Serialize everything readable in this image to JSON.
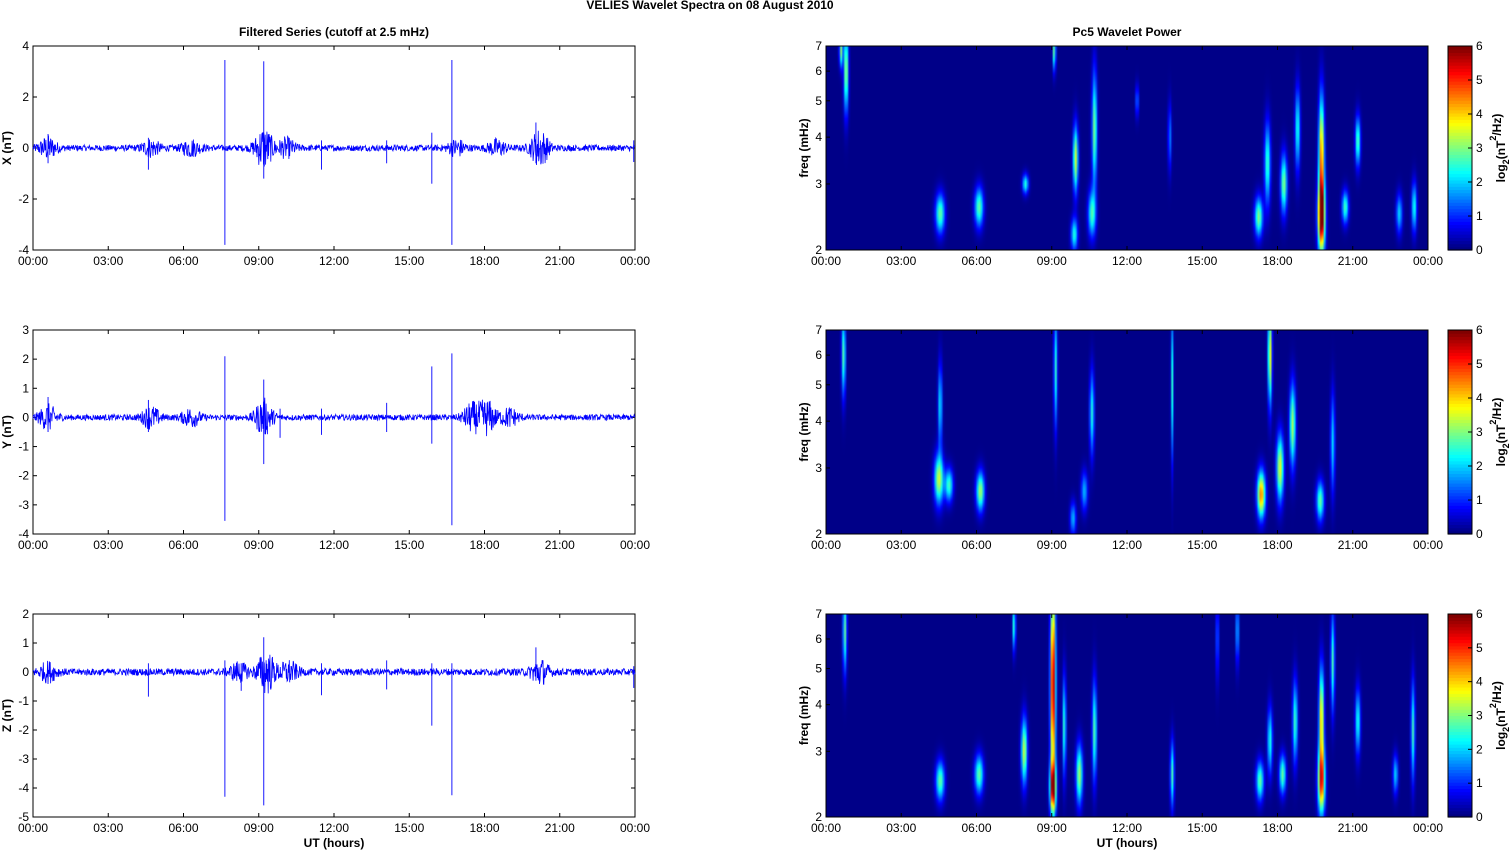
{
  "figure": {
    "title": "VELIES Wavelet Spectra on 08 August    2010",
    "left_title": "Filtered Series (cutoff at 2.5 mHz)",
    "right_title": "Pc5 Wavelet Power",
    "xlabel": "UT (hours)"
  },
  "colorbar": {
    "label_prefix": "log",
    "label_sub": "2",
    "label_mid": "(nT",
    "label_sup": "2",
    "label_suffix": "/Hz)",
    "ticks": [
      "0",
      "1",
      "2",
      "3",
      "4",
      "5",
      "6"
    ],
    "colormap": "jet",
    "range": [
      0,
      6
    ]
  },
  "colors": {
    "series": "#0000ff",
    "spectrum_background": "#00008f"
  },
  "chart_data": [
    {
      "type": "line",
      "title": "Filtered Series (cutoff at 2.5 mHz)",
      "ylabel": "X (nT)",
      "xlabel": "",
      "x_ticks": [
        "00:00",
        "03:00",
        "06:00",
        "09:00",
        "12:00",
        "15:00",
        "18:00",
        "21:00",
        "00:00"
      ],
      "xlim_hours": [
        0,
        24
      ],
      "ylim": [
        -4,
        4
      ],
      "y_ticks": [
        "-4",
        "-2",
        "0",
        "2",
        "4"
      ],
      "noise_amplitude": 0.12,
      "spikes": [
        {
          "t": 7.65,
          "values": [
            3.45,
            -3.8
          ]
        },
        {
          "t": 9.2,
          "values": [
            3.4,
            -1.2
          ]
        },
        {
          "t": 16.7,
          "values": [
            3.45,
            -3.8
          ]
        },
        {
          "t": 15.9,
          "values": [
            0.6,
            -1.4
          ]
        },
        {
          "t": 20.05,
          "values": [
            1.0,
            -0.6
          ]
        },
        {
          "t": 4.6,
          "values": [
            0.4,
            -0.85
          ]
        },
        {
          "t": 11.5,
          "values": [
            0.3,
            -0.85
          ]
        },
        {
          "t": 14.1,
          "values": [
            0.3,
            -0.6
          ]
        },
        {
          "t": 0.6,
          "values": [
            0.55,
            -0.6
          ]
        },
        {
          "t": 23.95,
          "values": [
            0.3,
            -0.55
          ]
        }
      ],
      "bursts": [
        [
          0.6,
          0.4
        ],
        [
          4.7,
          0.3
        ],
        [
          6.3,
          0.3
        ],
        [
          9.2,
          0.8
        ],
        [
          10.1,
          0.35
        ],
        [
          16.9,
          0.3
        ],
        [
          20.2,
          0.7
        ],
        [
          18.5,
          0.3
        ]
      ]
    },
    {
      "type": "line",
      "title": "",
      "ylabel": "Y (nT)",
      "xlabel": "",
      "x_ticks": [
        "00:00",
        "03:00",
        "06:00",
        "09:00",
        "12:00",
        "15:00",
        "18:00",
        "21:00",
        "00:00"
      ],
      "xlim_hours": [
        0,
        24
      ],
      "ylim": [
        -4,
        3
      ],
      "y_ticks": [
        "-4",
        "-3",
        "-2",
        "-1",
        "0",
        "1",
        "2",
        "3"
      ],
      "noise_amplitude": 0.1,
      "spikes": [
        {
          "t": 7.65,
          "values": [
            2.1,
            -3.55
          ]
        },
        {
          "t": 9.2,
          "values": [
            1.3,
            -1.6
          ]
        },
        {
          "t": 16.7,
          "values": [
            2.2,
            -3.7
          ]
        },
        {
          "t": 15.9,
          "values": [
            1.75,
            -0.9
          ]
        },
        {
          "t": 0.6,
          "values": [
            0.7,
            -0.5
          ]
        },
        {
          "t": 4.6,
          "values": [
            0.6,
            -0.5
          ]
        },
        {
          "t": 11.5,
          "values": [
            0.3,
            -0.6
          ]
        },
        {
          "t": 14.1,
          "values": [
            0.5,
            -0.5
          ]
        },
        {
          "t": 9.85,
          "values": [
            0.3,
            -0.7
          ]
        }
      ],
      "bursts": [
        [
          0.6,
          0.4
        ],
        [
          4.7,
          0.35
        ],
        [
          6.3,
          0.3
        ],
        [
          9.2,
          0.6
        ],
        [
          17.5,
          0.45
        ],
        [
          18.1,
          0.55
        ],
        [
          19.0,
          0.3
        ]
      ]
    },
    {
      "type": "line",
      "title": "",
      "ylabel": "Z (nT)",
      "xlabel": "UT (hours)",
      "x_ticks": [
        "00:00",
        "03:00",
        "06:00",
        "09:00",
        "12:00",
        "15:00",
        "18:00",
        "21:00",
        "00:00"
      ],
      "xlim_hours": [
        0,
        24
      ],
      "ylim": [
        -5,
        2
      ],
      "y_ticks": [
        "-5",
        "-4",
        "-3",
        "-2",
        "-1",
        "0",
        "1",
        "2"
      ],
      "noise_amplitude": 0.12,
      "spikes": [
        {
          "t": 7.65,
          "values": [
            0.4,
            -4.3
          ]
        },
        {
          "t": 9.2,
          "values": [
            1.2,
            -4.6
          ]
        },
        {
          "t": 16.7,
          "values": [
            0.3,
            -4.25
          ]
        },
        {
          "t": 15.9,
          "values": [
            0.3,
            -1.85
          ]
        },
        {
          "t": 4.6,
          "values": [
            0.3,
            -0.85
          ]
        },
        {
          "t": 11.5,
          "values": [
            0.3,
            -0.8
          ]
        },
        {
          "t": 14.1,
          "values": [
            0.4,
            -0.6
          ]
        },
        {
          "t": 20.05,
          "values": [
            0.85,
            -0.3
          ]
        },
        {
          "t": 8.3,
          "values": [
            0.3,
            -0.65
          ]
        },
        {
          "t": 23.95,
          "values": [
            0.2,
            -0.55
          ]
        }
      ],
      "bursts": [
        [
          0.6,
          0.3
        ],
        [
          8.2,
          0.3
        ],
        [
          9.3,
          0.7
        ],
        [
          10.2,
          0.35
        ],
        [
          20.2,
          0.4
        ]
      ]
    },
    {
      "type": "heatmap",
      "title": "Pc5 Wavelet Power",
      "ylabel": "freq (mHz)",
      "xlabel": "",
      "x_ticks": [
        "00:00",
        "03:00",
        "06:00",
        "09:00",
        "12:00",
        "15:00",
        "18:00",
        "21:00",
        "00:00"
      ],
      "xlim_hours": [
        0,
        24
      ],
      "y_scale": "log",
      "ylim_mhz": [
        2,
        7
      ],
      "y_ticks": [
        "2",
        "3",
        "4",
        "5",
        "6",
        "7"
      ],
      "blobs": [
        {
          "t": 0.8,
          "fc": 6.0,
          "fw": 0.25,
          "tw": 0.09,
          "p": 3.3
        },
        {
          "t": 0.6,
          "fc": 6.8,
          "fw": 0.1,
          "tw": 0.07,
          "p": 3.0
        },
        {
          "t": 4.55,
          "fc": 2.5,
          "fw": 0.12,
          "tw": 0.18,
          "p": 2.8
        },
        {
          "t": 6.1,
          "fc": 2.6,
          "fw": 0.12,
          "tw": 0.17,
          "p": 2.8
        },
        {
          "t": 7.95,
          "fc": 3.0,
          "fw": 0.06,
          "tw": 0.12,
          "p": 2.4
        },
        {
          "t": 9.1,
          "fc": 6.8,
          "fw": 0.12,
          "tw": 0.06,
          "p": 3.0
        },
        {
          "t": 9.9,
          "fc": 2.2,
          "fw": 0.1,
          "tw": 0.13,
          "p": 2.4
        },
        {
          "t": 9.95,
          "fc": 3.5,
          "fw": 0.2,
          "tw": 0.1,
          "p": 3.5
        },
        {
          "t": 10.7,
          "fc": 4.2,
          "fw": 0.35,
          "tw": 0.1,
          "p": 3.0
        },
        {
          "t": 10.6,
          "fc": 2.5,
          "fw": 0.14,
          "tw": 0.15,
          "p": 2.6
        },
        {
          "t": 12.4,
          "fc": 5.0,
          "fw": 0.1,
          "tw": 0.06,
          "p": 1.6
        },
        {
          "t": 13.7,
          "fc": 4.0,
          "fw": 0.2,
          "tw": 0.07,
          "p": 1.5
        },
        {
          "t": 17.25,
          "fc": 2.45,
          "fw": 0.12,
          "tw": 0.16,
          "p": 3.0
        },
        {
          "t": 17.6,
          "fc": 3.4,
          "fw": 0.25,
          "tw": 0.12,
          "p": 2.6
        },
        {
          "t": 18.25,
          "fc": 3.0,
          "fw": 0.18,
          "tw": 0.13,
          "p": 3.0
        },
        {
          "t": 18.8,
          "fc": 4.2,
          "fw": 0.25,
          "tw": 0.1,
          "p": 2.4
        },
        {
          "t": 19.75,
          "fc": 2.45,
          "fw": 0.22,
          "tw": 0.14,
          "p": 6.0
        },
        {
          "t": 19.75,
          "fc": 3.6,
          "fw": 0.35,
          "tw": 0.11,
          "p": 4.4
        },
        {
          "t": 20.7,
          "fc": 2.6,
          "fw": 0.1,
          "tw": 0.13,
          "p": 2.6
        },
        {
          "t": 21.2,
          "fc": 3.9,
          "fw": 0.15,
          "tw": 0.1,
          "p": 2.8
        },
        {
          "t": 22.85,
          "fc": 2.5,
          "fw": 0.12,
          "tw": 0.12,
          "p": 2.0
        },
        {
          "t": 23.45,
          "fc": 2.6,
          "fw": 0.15,
          "tw": 0.1,
          "p": 2.4
        }
      ]
    },
    {
      "type": "heatmap",
      "title": "",
      "ylabel": "freq (mHz)",
      "xlabel": "",
      "x_ticks": [
        "00:00",
        "03:00",
        "06:00",
        "09:00",
        "12:00",
        "15:00",
        "18:00",
        "21:00",
        "00:00"
      ],
      "xlim_hours": [
        0,
        24
      ],
      "y_scale": "log",
      "ylim_mhz": [
        2,
        7
      ],
      "y_ticks": [
        "2",
        "3",
        "4",
        "5",
        "6",
        "7"
      ],
      "blobs": [
        {
          "t": 0.7,
          "fc": 6.0,
          "fw": 0.25,
          "tw": 0.08,
          "p": 2.8
        },
        {
          "t": 4.5,
          "fc": 2.8,
          "fw": 0.15,
          "tw": 0.18,
          "p": 3.4
        },
        {
          "t": 4.55,
          "fc": 4.4,
          "fw": 0.25,
          "tw": 0.08,
          "p": 2.2
        },
        {
          "t": 4.9,
          "fc": 2.7,
          "fw": 0.1,
          "tw": 0.16,
          "p": 2.6
        },
        {
          "t": 6.15,
          "fc": 2.6,
          "fw": 0.12,
          "tw": 0.16,
          "p": 3.2
        },
        {
          "t": 9.15,
          "fc": 5.5,
          "fw": 0.35,
          "tw": 0.07,
          "p": 2.5
        },
        {
          "t": 9.85,
          "fc": 2.2,
          "fw": 0.1,
          "tw": 0.12,
          "p": 1.8
        },
        {
          "t": 10.6,
          "fc": 4.2,
          "fw": 0.25,
          "tw": 0.09,
          "p": 2.4
        },
        {
          "t": 10.3,
          "fc": 2.6,
          "fw": 0.12,
          "tw": 0.13,
          "p": 1.8
        },
        {
          "t": 13.8,
          "fc": 5.0,
          "fw": 0.45,
          "tw": 0.05,
          "p": 2.4
        },
        {
          "t": 17.35,
          "fc": 2.55,
          "fw": 0.14,
          "tw": 0.16,
          "p": 4.5
        },
        {
          "t": 17.7,
          "fc": 6.0,
          "fw": 0.3,
          "tw": 0.08,
          "p": 3.8
        },
        {
          "t": 18.1,
          "fc": 3.0,
          "fw": 0.2,
          "tw": 0.14,
          "p": 3.6
        },
        {
          "t": 18.6,
          "fc": 3.9,
          "fw": 0.25,
          "tw": 0.12,
          "p": 3.2
        },
        {
          "t": 19.7,
          "fc": 2.45,
          "fw": 0.12,
          "tw": 0.15,
          "p": 2.8
        },
        {
          "t": 20.2,
          "fc": 3.5,
          "fw": 0.3,
          "tw": 0.09,
          "p": 2.0
        }
      ]
    },
    {
      "type": "heatmap",
      "title": "",
      "ylabel": "freq (mHz)",
      "xlabel": "UT (hours)",
      "x_ticks": [
        "00:00",
        "03:00",
        "06:00",
        "09:00",
        "12:00",
        "15:00",
        "18:00",
        "21:00",
        "00:00"
      ],
      "xlim_hours": [
        0,
        24
      ],
      "y_scale": "log",
      "ylim_mhz": [
        2,
        7
      ],
      "y_ticks": [
        "2",
        "3",
        "4",
        "5",
        "6",
        "7"
      ],
      "blobs": [
        {
          "t": 0.75,
          "fc": 6.3,
          "fw": 0.25,
          "tw": 0.08,
          "p": 2.8
        },
        {
          "t": 4.55,
          "fc": 2.5,
          "fw": 0.12,
          "tw": 0.17,
          "p": 2.8
        },
        {
          "t": 6.1,
          "fc": 2.6,
          "fw": 0.12,
          "tw": 0.17,
          "p": 2.8
        },
        {
          "t": 7.5,
          "fc": 6.5,
          "fw": 0.15,
          "tw": 0.06,
          "p": 2.6
        },
        {
          "t": 7.9,
          "fc": 3.0,
          "fw": 0.2,
          "tw": 0.12,
          "p": 3.4
        },
        {
          "t": 9.05,
          "fc": 4.5,
          "fw": 0.6,
          "tw": 0.1,
          "p": 6.0
        },
        {
          "t": 9.05,
          "fc": 2.4,
          "fw": 0.15,
          "tw": 0.12,
          "p": 5.0
        },
        {
          "t": 9.5,
          "fc": 3.5,
          "fw": 0.3,
          "tw": 0.07,
          "p": 2.6
        },
        {
          "t": 10.1,
          "fc": 2.6,
          "fw": 0.18,
          "tw": 0.13,
          "p": 3.2
        },
        {
          "t": 10.7,
          "fc": 3.4,
          "fw": 0.3,
          "tw": 0.09,
          "p": 2.8
        },
        {
          "t": 13.8,
          "fc": 2.6,
          "fw": 0.2,
          "tw": 0.08,
          "p": 2.6
        },
        {
          "t": 15.6,
          "fc": 6.0,
          "fw": 0.25,
          "tw": 0.05,
          "p": 1.8
        },
        {
          "t": 16.4,
          "fc": 6.3,
          "fw": 0.2,
          "tw": 0.05,
          "p": 2.6
        },
        {
          "t": 17.3,
          "fc": 2.5,
          "fw": 0.12,
          "tw": 0.15,
          "p": 2.8
        },
        {
          "t": 17.7,
          "fc": 3.2,
          "fw": 0.2,
          "tw": 0.1,
          "p": 2.4
        },
        {
          "t": 18.2,
          "fc": 2.6,
          "fw": 0.12,
          "tw": 0.13,
          "p": 2.8
        },
        {
          "t": 18.7,
          "fc": 3.6,
          "fw": 0.25,
          "tw": 0.1,
          "p": 2.6
        },
        {
          "t": 19.75,
          "fc": 2.5,
          "fw": 0.2,
          "tw": 0.14,
          "p": 5.0
        },
        {
          "t": 19.75,
          "fc": 3.7,
          "fw": 0.3,
          "tw": 0.1,
          "p": 4.0
        },
        {
          "t": 20.2,
          "fc": 5.2,
          "fw": 0.3,
          "tw": 0.08,
          "p": 2.6
        },
        {
          "t": 21.2,
          "fc": 3.6,
          "fw": 0.2,
          "tw": 0.1,
          "p": 2.4
        },
        {
          "t": 22.7,
          "fc": 2.6,
          "fw": 0.12,
          "tw": 0.1,
          "p": 2.0
        },
        {
          "t": 23.4,
          "fc": 3.4,
          "fw": 0.3,
          "tw": 0.08,
          "p": 2.6
        }
      ]
    }
  ]
}
